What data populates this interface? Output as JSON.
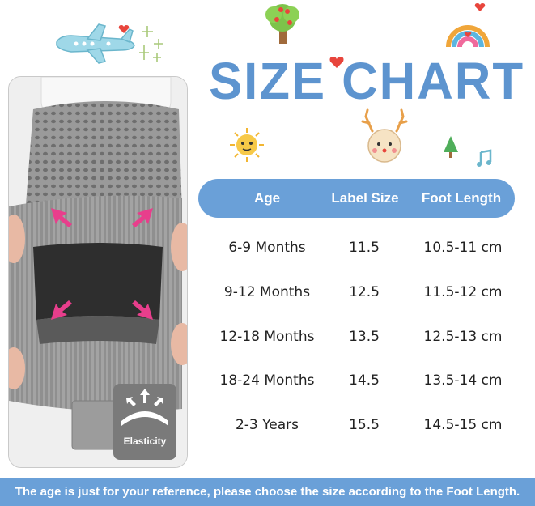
{
  "title": "SIZE CHART",
  "badge": {
    "label": "Elasticity"
  },
  "table": {
    "headers": {
      "age": "Age",
      "label_size": "Label Size",
      "foot_length": "Foot Length"
    },
    "rows": [
      {
        "age": "6-9 Months",
        "label_size": "11.5",
        "foot_length": "10.5-11 cm"
      },
      {
        "age": "9-12 Months",
        "label_size": "12.5",
        "foot_length": "11.5-12 cm"
      },
      {
        "age": "12-18 Months",
        "label_size": "13.5",
        "foot_length": "12.5-13 cm"
      },
      {
        "age": "18-24 Months",
        "label_size": "14.5",
        "foot_length": "13.5-14 cm"
      },
      {
        "age": "2-3 Years",
        "label_size": "15.5",
        "foot_length": "14.5-15 cm"
      }
    ]
  },
  "note": "The age is just for your reference, please choose the size according to the Foot Length.",
  "colors": {
    "accent_blue": "#6aa0d8",
    "title_blue": "#5d94cf",
    "heart_red": "#e8453c",
    "arrow_pink": "#e83e8c"
  },
  "icons": [
    "airplane-icon",
    "sparkle-icon",
    "tree-icon",
    "rainbow-icon",
    "heart-icon",
    "sun-icon",
    "deer-icon",
    "pine-tree-icon",
    "music-note-icon",
    "elasticity-icon"
  ]
}
